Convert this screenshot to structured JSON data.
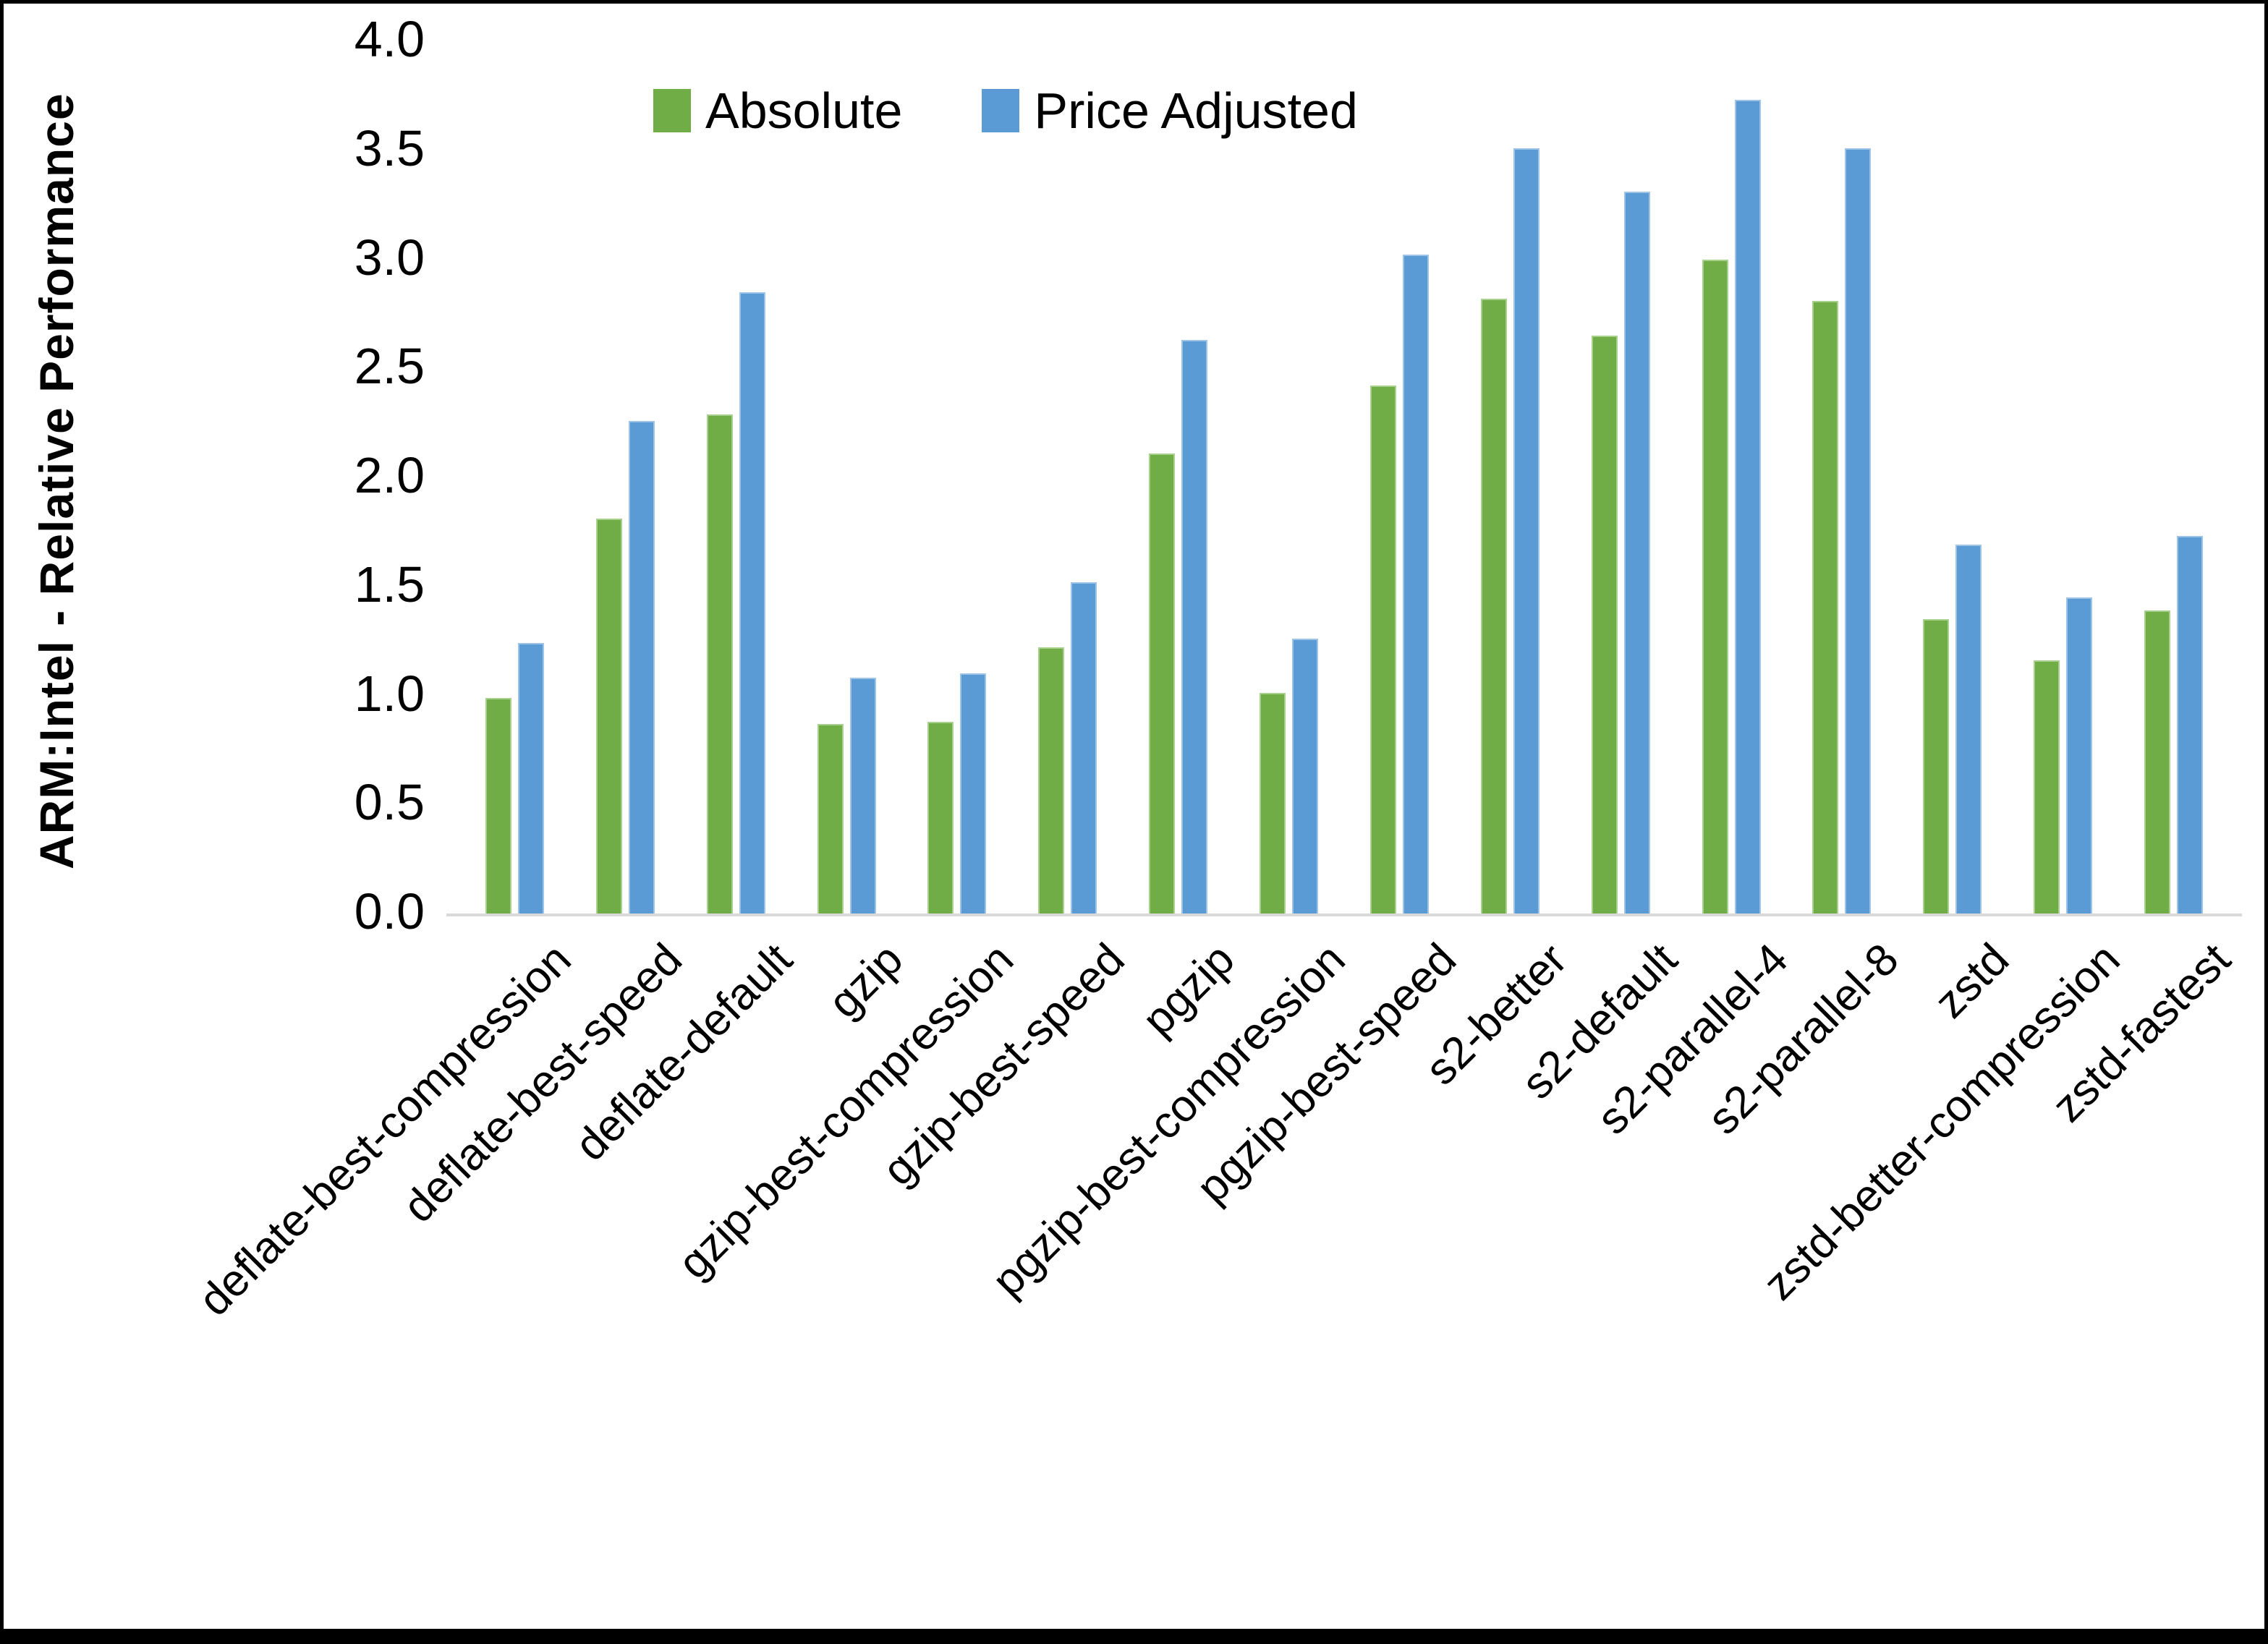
{
  "chart_data": {
    "type": "bar",
    "title": "",
    "xlabel": "",
    "ylabel": "ARM:Intel - Relative Performance",
    "ylim": [
      0,
      4
    ],
    "ytick_step": 0.5,
    "yticks": [
      "0.0",
      "0.5",
      "1.0",
      "1.5",
      "2.0",
      "2.5",
      "3.0",
      "3.5",
      "4.0"
    ],
    "grid": false,
    "legend_position": "top-center",
    "categories": [
      "deflate-best-compression",
      "deflate-best-speed",
      "deflate-default",
      "gzip",
      "gzip-best-compression",
      "gzip-best-speed",
      "pgzip",
      "pgzip-best-compression",
      "pgzip-best-speed",
      "s2-better",
      "s2-default",
      "s2-parallel-4",
      "s2-parallel-8",
      "zstd",
      "zstd-better-compression",
      "zstd-fastest"
    ],
    "series": [
      {
        "name": "Absolute",
        "color": "#70AD47",
        "edge_color": "#A9D18E",
        "values": [
          0.99,
          1.81,
          2.29,
          0.87,
          0.88,
          1.22,
          2.11,
          1.01,
          2.42,
          2.82,
          2.65,
          3.0,
          2.81,
          1.35,
          1.16,
          1.39
        ]
      },
      {
        "name": "Price Adjusted",
        "color": "#5B9BD5",
        "edge_color": "#9DC3E6",
        "values": [
          1.24,
          2.26,
          2.85,
          1.08,
          1.1,
          1.52,
          2.63,
          1.26,
          3.02,
          3.51,
          3.31,
          3.73,
          3.51,
          1.69,
          1.45,
          1.73
        ]
      }
    ]
  },
  "colors": {
    "background": "#FFFFFF",
    "frame": "#000000",
    "axis_line": "#D9D9D9",
    "text": "#000000"
  }
}
